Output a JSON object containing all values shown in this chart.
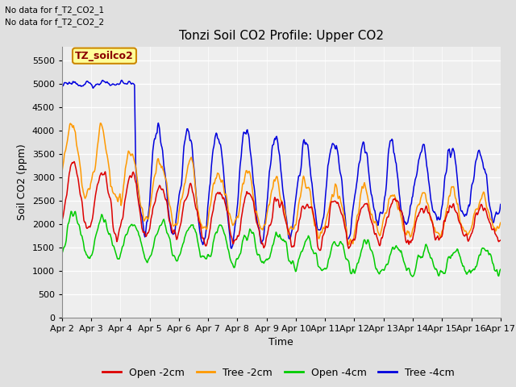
{
  "title": "Tonzi Soil CO2 Profile: Upper CO2",
  "xlabel": "Time",
  "ylabel": "Soil CO2 (ppm)",
  "no_data_text": [
    "No data for f_T2_CO2_1",
    "No data for f_T2_CO2_2"
  ],
  "legend_label": "TZ_soilco2",
  "ylim": [
    0,
    5800
  ],
  "yticks": [
    0,
    500,
    1000,
    1500,
    2000,
    2500,
    3000,
    3500,
    4000,
    4500,
    5000,
    5500
  ],
  "series_labels": [
    "Open -2cm",
    "Tree -2cm",
    "Open -4cm",
    "Tree -4cm"
  ],
  "series_colors": [
    "#dd0000",
    "#ff9900",
    "#00cc00",
    "#0000dd"
  ],
  "bg_color": "#e0e0e0",
  "plot_bg_color": "#eeeeee",
  "title_fontsize": 11,
  "axis_fontsize": 9,
  "tick_fontsize": 8,
  "legend_fontsize": 9,
  "line_width": 1.1,
  "n_points": 720,
  "x_start": 2.0,
  "x_end": 17.0,
  "xtick_positions": [
    2,
    3,
    4,
    5,
    6,
    7,
    8,
    9,
    10,
    11,
    12,
    13,
    14,
    15,
    16,
    17
  ],
  "xtick_labels": [
    "Apr 2",
    "Apr 3",
    "Apr 4",
    "Apr 5",
    "Apr 6",
    "Apr 7",
    "Apr 8",
    "Apr 9",
    "Apr 10",
    "Apr 11",
    "Apr 12",
    "Apr 13",
    "Apr 14",
    "Apr 15",
    "Apr 16",
    "Apr 17"
  ]
}
